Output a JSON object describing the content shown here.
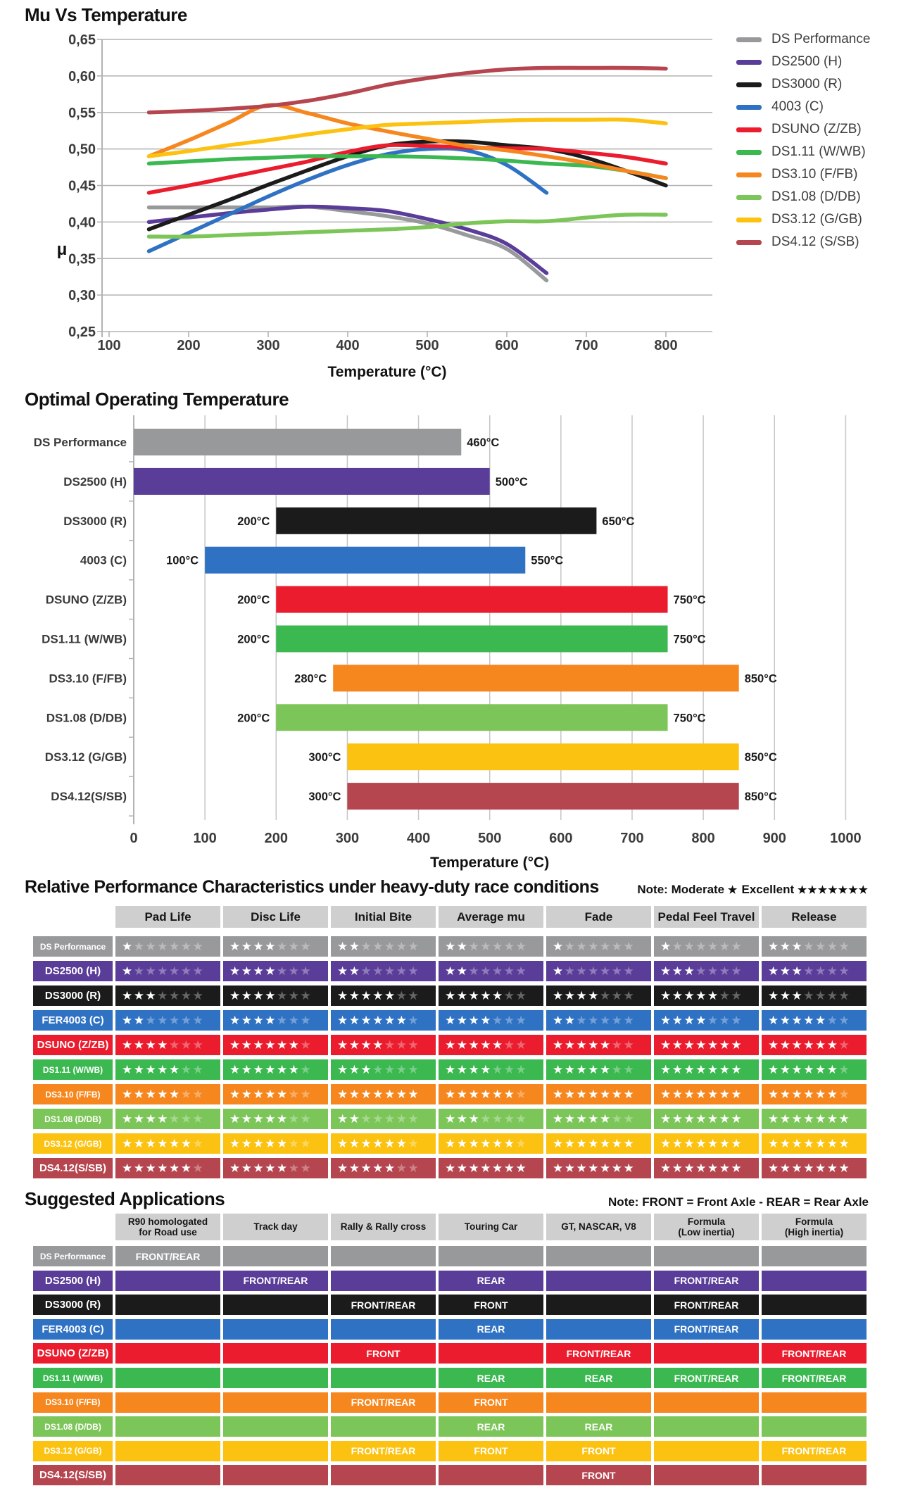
{
  "colors": {
    "grid": "#b3b3b3",
    "axis_text": "#3c3c3c",
    "header_cell_bg": "#cfcfcf",
    "star_filled": "#ffffff"
  },
  "line_chart": {
    "type": "line",
    "title": "Mu Vs Temperature",
    "xlabel": "Temperature (°C)",
    "ylabel": "μ",
    "x_ticks": [
      100,
      200,
      300,
      400,
      500,
      600,
      700,
      800
    ],
    "y_ticks": [
      0.65,
      0.6,
      0.55,
      0.5,
      0.45,
      0.4,
      0.35,
      0.3,
      0.25
    ],
    "y_tick_labels": [
      "0,65",
      "0,60",
      "0,55",
      "0,50",
      "0,45",
      "0,40",
      "0,35",
      "0,30",
      "0,25"
    ],
    "xlim": [
      100,
      865
    ],
    "ylim": [
      0.25,
      0.65
    ],
    "grid": "horizontal",
    "legend_position": "right",
    "series": [
      {
        "name": "DS Performance",
        "color": "#98999b",
        "points": [
          [
            150,
            0.42
          ],
          [
            200,
            0.42
          ],
          [
            250,
            0.42
          ],
          [
            300,
            0.42
          ],
          [
            350,
            0.421
          ],
          [
            400,
            0.415
          ],
          [
            450,
            0.408
          ],
          [
            500,
            0.398
          ],
          [
            550,
            0.382
          ],
          [
            600,
            0.363
          ],
          [
            650,
            0.32
          ]
        ]
      },
      {
        "name": "DS2500 (H)",
        "color": "#5a3d98",
        "points": [
          [
            150,
            0.4
          ],
          [
            200,
            0.406
          ],
          [
            250,
            0.412
          ],
          [
            300,
            0.417
          ],
          [
            350,
            0.421
          ],
          [
            400,
            0.419
          ],
          [
            450,
            0.415
          ],
          [
            500,
            0.404
          ],
          [
            550,
            0.39
          ],
          [
            600,
            0.37
          ],
          [
            650,
            0.33
          ]
        ]
      },
      {
        "name": "DS3000 (R)",
        "color": "#1b1b1b",
        "points": [
          [
            150,
            0.39
          ],
          [
            200,
            0.41
          ],
          [
            250,
            0.43
          ],
          [
            300,
            0.451
          ],
          [
            350,
            0.471
          ],
          [
            400,
            0.49
          ],
          [
            450,
            0.505
          ],
          [
            500,
            0.51
          ],
          [
            550,
            0.51
          ],
          [
            600,
            0.505
          ],
          [
            650,
            0.5
          ],
          [
            700,
            0.488
          ],
          [
            750,
            0.47
          ],
          [
            800,
            0.45
          ]
        ]
      },
      {
        "name": "4003 (C)",
        "color": "#2f72c3",
        "points": [
          [
            150,
            0.36
          ],
          [
            200,
            0.385
          ],
          [
            250,
            0.41
          ],
          [
            300,
            0.435
          ],
          [
            350,
            0.458
          ],
          [
            400,
            0.478
          ],
          [
            450,
            0.493
          ],
          [
            500,
            0.5
          ],
          [
            550,
            0.498
          ],
          [
            600,
            0.478
          ],
          [
            650,
            0.44
          ]
        ]
      },
      {
        "name": "DSUNO (Z/ZB)",
        "color": "#ea1c2d",
        "points": [
          [
            150,
            0.44
          ],
          [
            200,
            0.45
          ],
          [
            250,
            0.461
          ],
          [
            300,
            0.472
          ],
          [
            350,
            0.483
          ],
          [
            400,
            0.496
          ],
          [
            450,
            0.505
          ],
          [
            500,
            0.504
          ],
          [
            550,
            0.502
          ],
          [
            600,
            0.501
          ],
          [
            650,
            0.5
          ],
          [
            700,
            0.495
          ],
          [
            750,
            0.489
          ],
          [
            800,
            0.48
          ]
        ]
      },
      {
        "name": "DS1.11 (W/WB)",
        "color": "#3cb851",
        "points": [
          [
            150,
            0.48
          ],
          [
            200,
            0.483
          ],
          [
            250,
            0.486
          ],
          [
            300,
            0.488
          ],
          [
            350,
            0.49
          ],
          [
            400,
            0.49
          ],
          [
            450,
            0.49
          ],
          [
            500,
            0.489
          ],
          [
            550,
            0.487
          ],
          [
            600,
            0.484
          ],
          [
            650,
            0.48
          ],
          [
            700,
            0.477
          ],
          [
            750,
            0.47
          ],
          [
            800,
            0.46
          ]
        ]
      },
      {
        "name": "DS3.10 (F/FB)",
        "color": "#f6871f",
        "points": [
          [
            150,
            0.49
          ],
          [
            200,
            0.512
          ],
          [
            250,
            0.536
          ],
          [
            300,
            0.56
          ],
          [
            350,
            0.549
          ],
          [
            400,
            0.535
          ],
          [
            450,
            0.524
          ],
          [
            500,
            0.514
          ],
          [
            550,
            0.504
          ],
          [
            600,
            0.498
          ],
          [
            650,
            0.49
          ],
          [
            700,
            0.481
          ],
          [
            750,
            0.47
          ],
          [
            800,
            0.46
          ]
        ]
      },
      {
        "name": "DS1.08 (D/DB)",
        "color": "#7cc558",
        "points": [
          [
            150,
            0.38
          ],
          [
            200,
            0.38
          ],
          [
            250,
            0.382
          ],
          [
            300,
            0.384
          ],
          [
            350,
            0.386
          ],
          [
            400,
            0.388
          ],
          [
            450,
            0.39
          ],
          [
            500,
            0.393
          ],
          [
            550,
            0.398
          ],
          [
            600,
            0.401
          ],
          [
            650,
            0.401
          ],
          [
            700,
            0.406
          ],
          [
            750,
            0.41
          ],
          [
            800,
            0.41
          ]
        ]
      },
      {
        "name": "DS3.12 (G/GB)",
        "color": "#fcc211",
        "points": [
          [
            150,
            0.49
          ],
          [
            200,
            0.497
          ],
          [
            250,
            0.505
          ],
          [
            300,
            0.512
          ],
          [
            350,
            0.52
          ],
          [
            400,
            0.527
          ],
          [
            450,
            0.533
          ],
          [
            500,
            0.535
          ],
          [
            550,
            0.537
          ],
          [
            600,
            0.539
          ],
          [
            650,
            0.54
          ],
          [
            700,
            0.54
          ],
          [
            750,
            0.54
          ],
          [
            800,
            0.535
          ]
        ]
      },
      {
        "name": "DS4.12 (S/SB)",
        "color": "#b5454e",
        "points": [
          [
            150,
            0.55
          ],
          [
            200,
            0.552
          ],
          [
            250,
            0.555
          ],
          [
            300,
            0.559
          ],
          [
            350,
            0.566
          ],
          [
            400,
            0.576
          ],
          [
            450,
            0.588
          ],
          [
            500,
            0.597
          ],
          [
            550,
            0.604
          ],
          [
            600,
            0.609
          ],
          [
            650,
            0.611
          ],
          [
            700,
            0.611
          ],
          [
            750,
            0.611
          ],
          [
            800,
            0.61
          ]
        ]
      }
    ]
  },
  "bar_chart": {
    "type": "bar",
    "title": "Optimal Operating Temperature",
    "xlabel": "Temperature (°C)",
    "x_ticks": [
      0,
      100,
      200,
      300,
      400,
      500,
      600,
      700,
      800,
      900,
      1000
    ],
    "xlim": [
      0,
      1000
    ],
    "grid": "vertical",
    "bars": [
      {
        "label": "DS Performance",
        "color": "#98999b",
        "start": 0,
        "end": 460,
        "start_label": "",
        "end_label": "460°C"
      },
      {
        "label": "DS2500 (H)",
        "color": "#5a3d98",
        "start": 0,
        "end": 500,
        "start_label": "",
        "end_label": "500°C"
      },
      {
        "label": "DS3000 (R)",
        "color": "#1b1b1b",
        "start": 200,
        "end": 650,
        "start_label": "200°C",
        "end_label": "650°C"
      },
      {
        "label": "4003 (C)",
        "color": "#2f72c3",
        "start": 100,
        "end": 550,
        "start_label": "100°C",
        "end_label": "550°C"
      },
      {
        "label": "DSUNO (Z/ZB)",
        "color": "#ea1c2d",
        "start": 200,
        "end": 750,
        "start_label": "200°C",
        "end_label": "750°C"
      },
      {
        "label": "DS1.11 (W/WB)",
        "color": "#3cb851",
        "start": 200,
        "end": 750,
        "start_label": "200°C",
        "end_label": "750°C"
      },
      {
        "label": "DS3.10 (F/FB)",
        "color": "#f6871f",
        "start": 280,
        "end": 850,
        "start_label": "280°C",
        "end_label": "850°C"
      },
      {
        "label": "DS1.08 (D/DB)",
        "color": "#7cc558",
        "start": 200,
        "end": 750,
        "start_label": "200°C",
        "end_label": "750°C"
      },
      {
        "label": "DS3.12 (G/GB)",
        "color": "#fcc211",
        "start": 300,
        "end": 850,
        "start_label": "300°C",
        "end_label": "850°C"
      },
      {
        "label": "DS4.12(S/SB)",
        "color": "#b5454e",
        "start": 300,
        "end": 850,
        "start_label": "300°C",
        "end_label": "850°C"
      }
    ]
  },
  "ratings_table": {
    "title": "Relative Performance Characteristics under heavy-duty race conditions",
    "note": {
      "prefix": "Note:",
      "moderate_label": "Moderate",
      "moderate_stars": 1,
      "excellent_label": "Excellent",
      "excellent_stars": 7
    },
    "max_stars": 7,
    "columns": [
      "Pad Life",
      "Disc Life",
      "Initial Bite",
      "Average mu",
      "Fade",
      "Pedal Feel Travel",
      "Release"
    ],
    "rows": [
      {
        "label": "DS Performance",
        "color": "#98999b",
        "values": [
          1,
          4,
          2,
          2,
          1,
          1,
          3
        ]
      },
      {
        "label": "DS2500 (H)",
        "color": "#5a3d98",
        "values": [
          1,
          4,
          2,
          2,
          1,
          3,
          3
        ]
      },
      {
        "label": "DS3000 (R)",
        "color": "#1b1b1b",
        "values": [
          3,
          4,
          5,
          5,
          4,
          5,
          3
        ]
      },
      {
        "label": "FER4003 (C)",
        "color": "#2f72c3",
        "values": [
          2,
          4,
          6,
          4,
          2,
          4,
          5
        ]
      },
      {
        "label": "DSUNO (Z/ZB)",
        "color": "#ea1c2d",
        "values": [
          4,
          6,
          4,
          5,
          5,
          7,
          6
        ]
      },
      {
        "label": "DS1.11 (W/WB)",
        "color": "#3cb851",
        "values": [
          5,
          6,
          3,
          4,
          5,
          7,
          6
        ]
      },
      {
        "label": "DS3.10 (F/FB)",
        "color": "#f6871f",
        "values": [
          5,
          5,
          7,
          6,
          7,
          7,
          6
        ]
      },
      {
        "label": "DS1.08 (D/DB)",
        "color": "#7cc558",
        "values": [
          4,
          5,
          2,
          3,
          5,
          7,
          7
        ]
      },
      {
        "label": "DS3.12 (G/GB)",
        "color": "#fcc211",
        "values": [
          6,
          5,
          6,
          6,
          7,
          7,
          7
        ]
      },
      {
        "label": "DS4.12(S/SB)",
        "color": "#b5454e",
        "values": [
          6,
          5,
          5,
          7,
          7,
          7,
          7
        ]
      }
    ]
  },
  "applications_table": {
    "title": "Suggested Applications",
    "note": "Note: FRONT = Front Axle - REAR = Rear Axle",
    "columns": [
      "R90 homologated\nfor Road use",
      "Track day",
      "Rally & Rally cross",
      "Touring Car",
      "GT, NASCAR, V8",
      "Formula\n(Low inertia)",
      "Formula\n(High inertia)"
    ],
    "rows": [
      {
        "label": "DS Performance",
        "color": "#98999b",
        "cells": [
          "FRONT/REAR",
          "",
          "",
          "",
          "",
          "",
          ""
        ]
      },
      {
        "label": "DS2500 (H)",
        "color": "#5a3d98",
        "cells": [
          "",
          "FRONT/REAR",
          "",
          "REAR",
          "",
          "FRONT/REAR",
          ""
        ]
      },
      {
        "label": "DS3000 (R)",
        "color": "#1b1b1b",
        "cells": [
          "",
          "",
          "FRONT/REAR",
          "FRONT",
          "",
          "FRONT/REAR",
          ""
        ]
      },
      {
        "label": "FER4003 (C)",
        "color": "#2f72c3",
        "cells": [
          "",
          "",
          "",
          "REAR",
          "",
          "FRONT/REAR",
          ""
        ]
      },
      {
        "label": "DSUNO (Z/ZB)",
        "color": "#ea1c2d",
        "cells": [
          "",
          "",
          "FRONT",
          "",
          "FRONT/REAR",
          "",
          "FRONT/REAR"
        ]
      },
      {
        "label": "DS1.11 (W/WB)",
        "color": "#3cb851",
        "cells": [
          "",
          "",
          "",
          "REAR",
          "REAR",
          "FRONT/REAR",
          "FRONT/REAR"
        ]
      },
      {
        "label": "DS3.10 (F/FB)",
        "color": "#f6871f",
        "cells": [
          "",
          "",
          "FRONT/REAR",
          "FRONT",
          "",
          "",
          ""
        ]
      },
      {
        "label": "DS1.08 (D/DB)",
        "color": "#7cc558",
        "cells": [
          "",
          "",
          "",
          "REAR",
          "REAR",
          "",
          ""
        ]
      },
      {
        "label": "DS3.12 (G/GB)",
        "color": "#fcc211",
        "cells": [
          "",
          "",
          "FRONT/REAR",
          "FRONT",
          "FRONT",
          "",
          "FRONT/REAR"
        ]
      },
      {
        "label": "DS4.12(S/SB)",
        "color": "#b5454e",
        "cells": [
          "",
          "",
          "",
          "",
          "FRONT",
          "",
          ""
        ]
      }
    ]
  }
}
